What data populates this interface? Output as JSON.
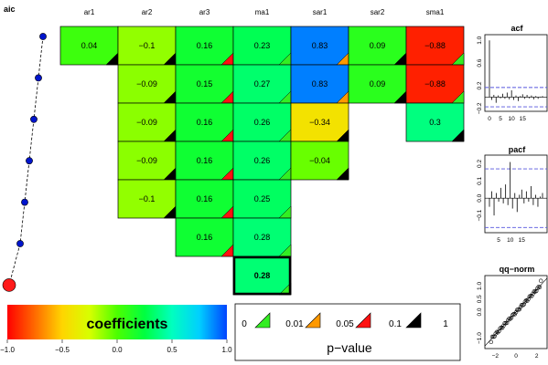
{
  "chart_data": [
    {
      "type": "heatmap",
      "title": "",
      "x_labels": [
        "ar1",
        "ar2",
        "ar3",
        "ma1",
        "sar1",
        "sar2",
        "sma1"
      ],
      "rows": [
        {
          "cells": [
            {
              "col": 0,
              "value": 0.04,
              "label": "0.04",
              "pvalue_marker": "black"
            },
            {
              "col": 1,
              "value": -0.1,
              "label": "−0.1",
              "pvalue_marker": "black"
            },
            {
              "col": 2,
              "value": 0.16,
              "label": "0.16",
              "pvalue_marker": "red"
            },
            {
              "col": 3,
              "value": 0.23,
              "label": "0.23",
              "pvalue_marker": "green"
            },
            {
              "col": 4,
              "value": 0.83,
              "label": "0.83",
              "pvalue_marker": "orange"
            },
            {
              "col": 5,
              "value": 0.09,
              "label": "0.09",
              "pvalue_marker": "black"
            },
            {
              "col": 6,
              "value": -0.88,
              "label": "−0.88",
              "pvalue_marker": "green"
            }
          ]
        },
        {
          "cells": [
            {
              "col": 1,
              "value": -0.09,
              "label": "−0.09",
              "pvalue_marker": "black"
            },
            {
              "col": 2,
              "value": 0.15,
              "label": "0.15",
              "pvalue_marker": "red"
            },
            {
              "col": 3,
              "value": 0.27,
              "label": "0.27",
              "pvalue_marker": "green"
            },
            {
              "col": 4,
              "value": 0.83,
              "label": "0.83",
              "pvalue_marker": "orange"
            },
            {
              "col": 5,
              "value": 0.09,
              "label": "0.09",
              "pvalue_marker": "black"
            },
            {
              "col": 6,
              "value": -0.88,
              "label": "−0.88",
              "pvalue_marker": "green"
            }
          ]
        },
        {
          "cells": [
            {
              "col": 1,
              "value": -0.09,
              "label": "−0.09",
              "pvalue_marker": "black"
            },
            {
              "col": 2,
              "value": 0.16,
              "label": "0.16",
              "pvalue_marker": "red"
            },
            {
              "col": 3,
              "value": 0.26,
              "label": "0.26",
              "pvalue_marker": "green"
            },
            {
              "col": 4,
              "value": -0.34,
              "label": "−0.34",
              "pvalue_marker": "black"
            },
            {
              "col": 6,
              "value": 0.3,
              "label": "0.3",
              "pvalue_marker": "black"
            }
          ]
        },
        {
          "cells": [
            {
              "col": 1,
              "value": -0.09,
              "label": "−0.09",
              "pvalue_marker": "black"
            },
            {
              "col": 2,
              "value": 0.16,
              "label": "0.16",
              "pvalue_marker": "red"
            },
            {
              "col": 3,
              "value": 0.26,
              "label": "0.26",
              "pvalue_marker": "green"
            },
            {
              "col": 4,
              "value": -0.04,
              "label": "−0.04",
              "pvalue_marker": "black"
            }
          ]
        },
        {
          "cells": [
            {
              "col": 1,
              "value": -0.1,
              "label": "−0.1",
              "pvalue_marker": "black"
            },
            {
              "col": 2,
              "value": 0.16,
              "label": "0.16",
              "pvalue_marker": "red"
            },
            {
              "col": 3,
              "value": 0.25,
              "label": "0.25",
              "pvalue_marker": "green"
            }
          ]
        },
        {
          "cells": [
            {
              "col": 2,
              "value": 0.16,
              "label": "0.16",
              "pvalue_marker": "red"
            },
            {
              "col": 3,
              "value": 0.28,
              "label": "0.28",
              "pvalue_marker": "green"
            }
          ]
        },
        {
          "cells": [
            {
              "col": 3,
              "value": 0.28,
              "label": "0.28",
              "pvalue_marker": "green",
              "selected": true
            }
          ]
        }
      ]
    },
    {
      "type": "line",
      "title": "aic",
      "values": [
        7,
        6,
        5,
        4,
        3,
        2,
        1
      ],
      "best_index": 6
    },
    {
      "type": "bar",
      "title": "acf",
      "x_ticks": [
        "0",
        "5",
        "10",
        "15"
      ],
      "y_ticks": [
        "−0.2",
        "0.2",
        "0.6",
        "1.0"
      ],
      "ylim": [
        -0.25,
        1.1
      ],
      "conf_band": 0.17,
      "lags": [
        0,
        1,
        2,
        3,
        4,
        5,
        6,
        7,
        8,
        9,
        10,
        11,
        12,
        13,
        14,
        15,
        16,
        17,
        18,
        19,
        20,
        21,
        22,
        23,
        24
      ],
      "values": [
        1.0,
        -0.05,
        0.04,
        -0.1,
        0.03,
        -0.02,
        0.06,
        -0.03,
        0.08,
        -0.04,
        0.12,
        -0.05,
        0.03,
        -0.07,
        0.02,
        0.05,
        -0.03,
        0.04,
        -0.02,
        0.03,
        -0.04,
        0.02,
        -0.03,
        0.01,
        0.02
      ]
    },
    {
      "type": "bar",
      "title": "pacf",
      "x_ticks": [
        "5",
        "10",
        "15"
      ],
      "y_ticks": [
        "−0.1",
        "0.0",
        "0.1",
        "0.2"
      ],
      "ylim": [
        -0.2,
        0.25
      ],
      "conf_band": 0.17,
      "lags": [
        1,
        2,
        3,
        4,
        5,
        6,
        7,
        8,
        9,
        10,
        11,
        12,
        13,
        14,
        15,
        16,
        17,
        18,
        19,
        20,
        21,
        22,
        23,
        24
      ],
      "values": [
        -0.05,
        0.04,
        -0.1,
        0.03,
        -0.02,
        0.06,
        -0.03,
        0.08,
        -0.04,
        0.21,
        -0.06,
        0.03,
        -0.08,
        0.02,
        0.05,
        -0.03,
        0.04,
        -0.02,
        0.07,
        -0.04,
        0.02,
        -0.05,
        0.01,
        0.03
      ]
    },
    {
      "type": "scatter",
      "title": "qq−norm",
      "x_ticks": [
        "−2",
        "0",
        "2"
      ],
      "y_ticks": [
        "−1.0",
        "0.0",
        "0.5",
        "1.0"
      ],
      "xlim": [
        -3,
        3
      ],
      "ylim": [
        -1.4,
        1.4
      ]
    }
  ],
  "colorbar": {
    "label": "coefficients",
    "ticks": [
      "−1.0",
      "−0.5",
      "0.0",
      "0.5",
      "1.0"
    ],
    "colors": [
      "#ff0000",
      "#ff6a00",
      "#ffd500",
      "#d7ff00",
      "#4cff00",
      "#00ff40",
      "#00ffbf",
      "#00cfff",
      "#0044ff"
    ]
  },
  "pvalue_legend": {
    "title": "p−value",
    "breaks": [
      "0",
      "0.01",
      "0.05",
      "0.1",
      "1"
    ],
    "colors": [
      "#33ee22",
      "#ff9900",
      "#ff1111",
      "#000000"
    ]
  }
}
